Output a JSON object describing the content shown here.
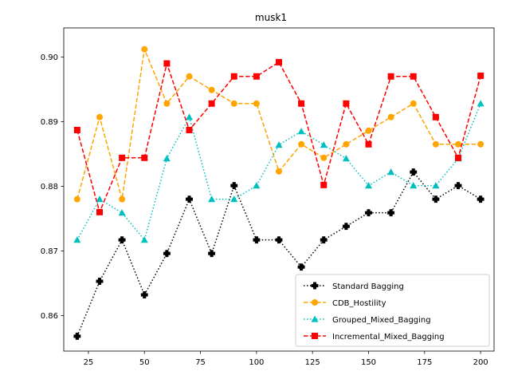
{
  "chart_data": {
    "type": "line",
    "title": "musk1",
    "xlabel": "",
    "ylabel": "",
    "x": [
      20,
      30,
      40,
      50,
      60,
      70,
      80,
      90,
      100,
      110,
      120,
      130,
      140,
      150,
      160,
      170,
      180,
      190,
      200
    ],
    "xlim": [
      14,
      206
    ],
    "ylim": [
      0.8545,
      0.9045
    ],
    "xticks": [
      25,
      50,
      75,
      100,
      125,
      150,
      175,
      200
    ],
    "xtick_labels": [
      "25",
      "50",
      "75",
      "100",
      "125",
      "150",
      "175",
      "200"
    ],
    "yticks": [
      0.86,
      0.87,
      0.88,
      0.89,
      0.9
    ],
    "ytick_labels": [
      "0.86",
      "0.87",
      "0.88",
      "0.89",
      "0.90"
    ],
    "grid": false,
    "legend_position": "lower-right",
    "series": [
      {
        "name": "Standard Bagging",
        "color": "#000000",
        "linestyle": "dotted",
        "marker": "plus",
        "values": [
          0.8568,
          0.8653,
          0.8717,
          0.8632,
          0.8696,
          0.878,
          0.8696,
          0.8801,
          0.8717,
          0.8717,
          0.8675,
          0.8717,
          0.8738,
          0.8759,
          0.8759,
          0.8822,
          0.878,
          0.8801,
          0.878
        ]
      },
      {
        "name": "CDB_Hostility",
        "color": "#ffa500",
        "linestyle": "dashed",
        "marker": "circle",
        "values": [
          0.878,
          0.8907,
          0.878,
          0.9012,
          0.8928,
          0.897,
          0.8949,
          0.8928,
          0.8928,
          0.8823,
          0.8865,
          0.8844,
          0.8865,
          0.8886,
          0.8907,
          0.8928,
          0.8865,
          0.8865,
          0.8865
        ]
      },
      {
        "name": "Grouped_Mixed_Bagging",
        "color": "#00bfbf",
        "linestyle": "dotted",
        "marker": "triangle",
        "values": [
          0.8717,
          0.878,
          0.8759,
          0.8717,
          0.8843,
          0.8907,
          0.878,
          0.878,
          0.8801,
          0.8864,
          0.8885,
          0.8864,
          0.8843,
          0.8801,
          0.8822,
          0.8801,
          0.8801,
          0.8843,
          0.8928
        ]
      },
      {
        "name": "Incremental_Mixed_Bagging",
        "color": "#ff0000",
        "linestyle": "dashed",
        "marker": "square",
        "values": [
          0.8887,
          0.876,
          0.8844,
          0.8844,
          0.899,
          0.8887,
          0.8928,
          0.897,
          0.897,
          0.8992,
          0.8928,
          0.8802,
          0.8928,
          0.8865,
          0.897,
          0.897,
          0.8907,
          0.8844,
          0.8971
        ]
      }
    ]
  }
}
